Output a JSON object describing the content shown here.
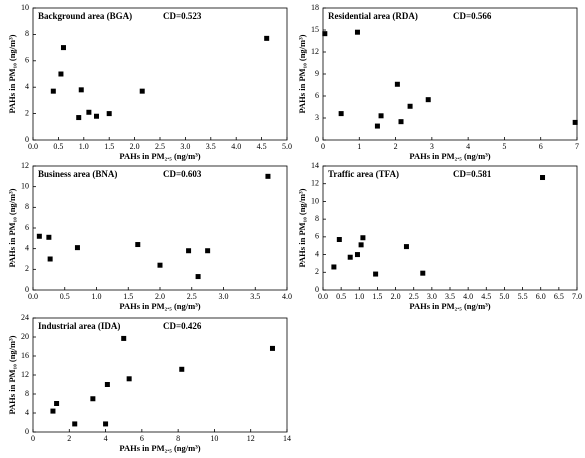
{
  "chart_data": [
    {
      "type": "scatter",
      "title": "Background area (BGA)",
      "annotation": "CD=0.523",
      "x_label": "PAHs in PM₂.₅ (ng/m³)",
      "y_label": "PAHs in PM₁₀ (ng/m³)",
      "x": [
        0.4,
        0.55,
        0.6,
        0.9,
        0.95,
        1.1,
        1.25,
        1.5,
        2.15,
        4.6
      ],
      "series": [
        {
          "color": "#000000",
          "values": [
            3.7,
            5.0,
            7.0,
            1.7,
            3.8,
            2.1,
            1.8,
            2.0,
            3.7,
            7.7
          ]
        }
      ],
      "xlim": [
        0,
        5
      ],
      "xticks": [
        {
          "value": 0,
          "label": "0.0"
        },
        0.5,
        {
          "value": 1,
          "label": "1.0"
        },
        1.5,
        {
          "value": 2,
          "label": "2.0"
        },
        2.5,
        {
          "value": 3,
          "label": "3.0"
        },
        3.5,
        {
          "value": 4,
          "label": "4.0"
        },
        4.5,
        {
          "value": 5,
          "label": "5.0"
        }
      ],
      "ylim": [
        0,
        10
      ],
      "yticks": [
        0,
        2,
        4,
        6,
        8,
        10
      ]
    },
    {
      "type": "scatter",
      "title": "Residential area (RDA)",
      "annotation": "CD=0.566",
      "x_label": "PAHs in PM₂.₅ (ng/m³)",
      "y_label": "PAHs in PM₁₀ (ng/m³)",
      "x": [
        0.05,
        0.5,
        0.95,
        1.5,
        1.6,
        2.05,
        2.15,
        2.4,
        2.9,
        6.95
      ],
      "series": [
        {
          "color": "#000000",
          "values": [
            14.5,
            3.6,
            14.7,
            1.9,
            3.3,
            7.6,
            2.5,
            4.6,
            5.5,
            2.4
          ]
        }
      ],
      "xlim": [
        0,
        7
      ],
      "xticks": [
        0,
        1,
        2,
        3,
        4,
        5,
        6,
        7
      ],
      "ylim": [
        0,
        18
      ],
      "yticks": [
        0,
        3,
        6,
        9,
        12,
        15,
        18
      ]
    },
    {
      "type": "scatter",
      "title": "Business area (BNA)",
      "annotation": "CD=0.603",
      "x_label": "PAHs in PM₂.₅ (ng/m³)",
      "y_label": "PAHs in PM₁₀ (ng/m³)",
      "x": [
        0.1,
        0.25,
        0.27,
        0.7,
        1.65,
        2.0,
        2.45,
        2.6,
        2.75,
        3.7
      ],
      "series": [
        {
          "color": "#000000",
          "values": [
            5.2,
            5.1,
            3.0,
            4.1,
            4.4,
            2.4,
            3.8,
            1.3,
            3.8,
            11.0
          ]
        }
      ],
      "xlim": [
        0,
        4
      ],
      "xticks": [
        {
          "value": 0,
          "label": "0.0"
        },
        0.5,
        {
          "value": 1,
          "label": "1.0"
        },
        1.5,
        {
          "value": 2,
          "label": "2.0"
        },
        2.5,
        {
          "value": 3,
          "label": "3.0"
        },
        3.5,
        {
          "value": 4,
          "label": "4.0"
        }
      ],
      "ylim": [
        0,
        12
      ],
      "yticks": [
        0,
        2,
        4,
        6,
        8,
        10,
        12
      ]
    },
    {
      "type": "scatter",
      "title": "Traffic area (TFA)",
      "annotation": "CD=0.581",
      "x_label": "PAHs in PM₂.₅ (ng/m³)",
      "y_label": "PAHs in PM₁₀ (ng/m³)",
      "x": [
        0.3,
        0.45,
        0.75,
        0.95,
        1.05,
        1.1,
        1.45,
        2.3,
        2.75,
        6.05
      ],
      "series": [
        {
          "color": "#000000",
          "values": [
            2.6,
            5.7,
            3.7,
            4.0,
            5.1,
            5.9,
            1.8,
            4.9,
            1.9,
            12.7
          ]
        }
      ],
      "xlim": [
        0,
        7
      ],
      "xticks": [
        {
          "value": 0,
          "label": "0.0"
        },
        0.5,
        {
          "value": 1,
          "label": "1.0"
        },
        1.5,
        {
          "value": 2,
          "label": "2.0"
        },
        2.5,
        {
          "value": 3,
          "label": "3.0"
        },
        3.5,
        {
          "value": 4,
          "label": "4.0"
        },
        4.5,
        {
          "value": 5,
          "label": "5.0"
        },
        5.5,
        {
          "value": 6,
          "label": "6.0"
        },
        6.5,
        {
          "value": 7,
          "label": "7.0"
        }
      ],
      "ylim": [
        0,
        14
      ],
      "yticks": [
        0,
        2,
        4,
        6,
        8,
        10,
        12,
        14
      ]
    },
    {
      "type": "scatter",
      "title": "Industrial area (IDA)",
      "annotation": "CD=0.426",
      "x_label": "PAHs in PM₂.₅ (ng/m³)",
      "y_label": "PAHs in PM₁₀ (ng/m³)",
      "x": [
        1.1,
        1.3,
        2.3,
        3.3,
        4.0,
        4.1,
        5.0,
        5.3,
        8.2,
        13.2
      ],
      "series": [
        {
          "color": "#000000",
          "values": [
            4.4,
            6.0,
            1.7,
            7.0,
            1.7,
            10.0,
            19.7,
            11.2,
            13.2,
            17.6
          ]
        }
      ],
      "xlim": [
        0,
        14
      ],
      "xticks": [
        0,
        2,
        4,
        6,
        8,
        10,
        12,
        14
      ],
      "ylim": [
        0,
        24
      ],
      "yticks": [
        0,
        4,
        8,
        12,
        16,
        20,
        24
      ]
    }
  ]
}
